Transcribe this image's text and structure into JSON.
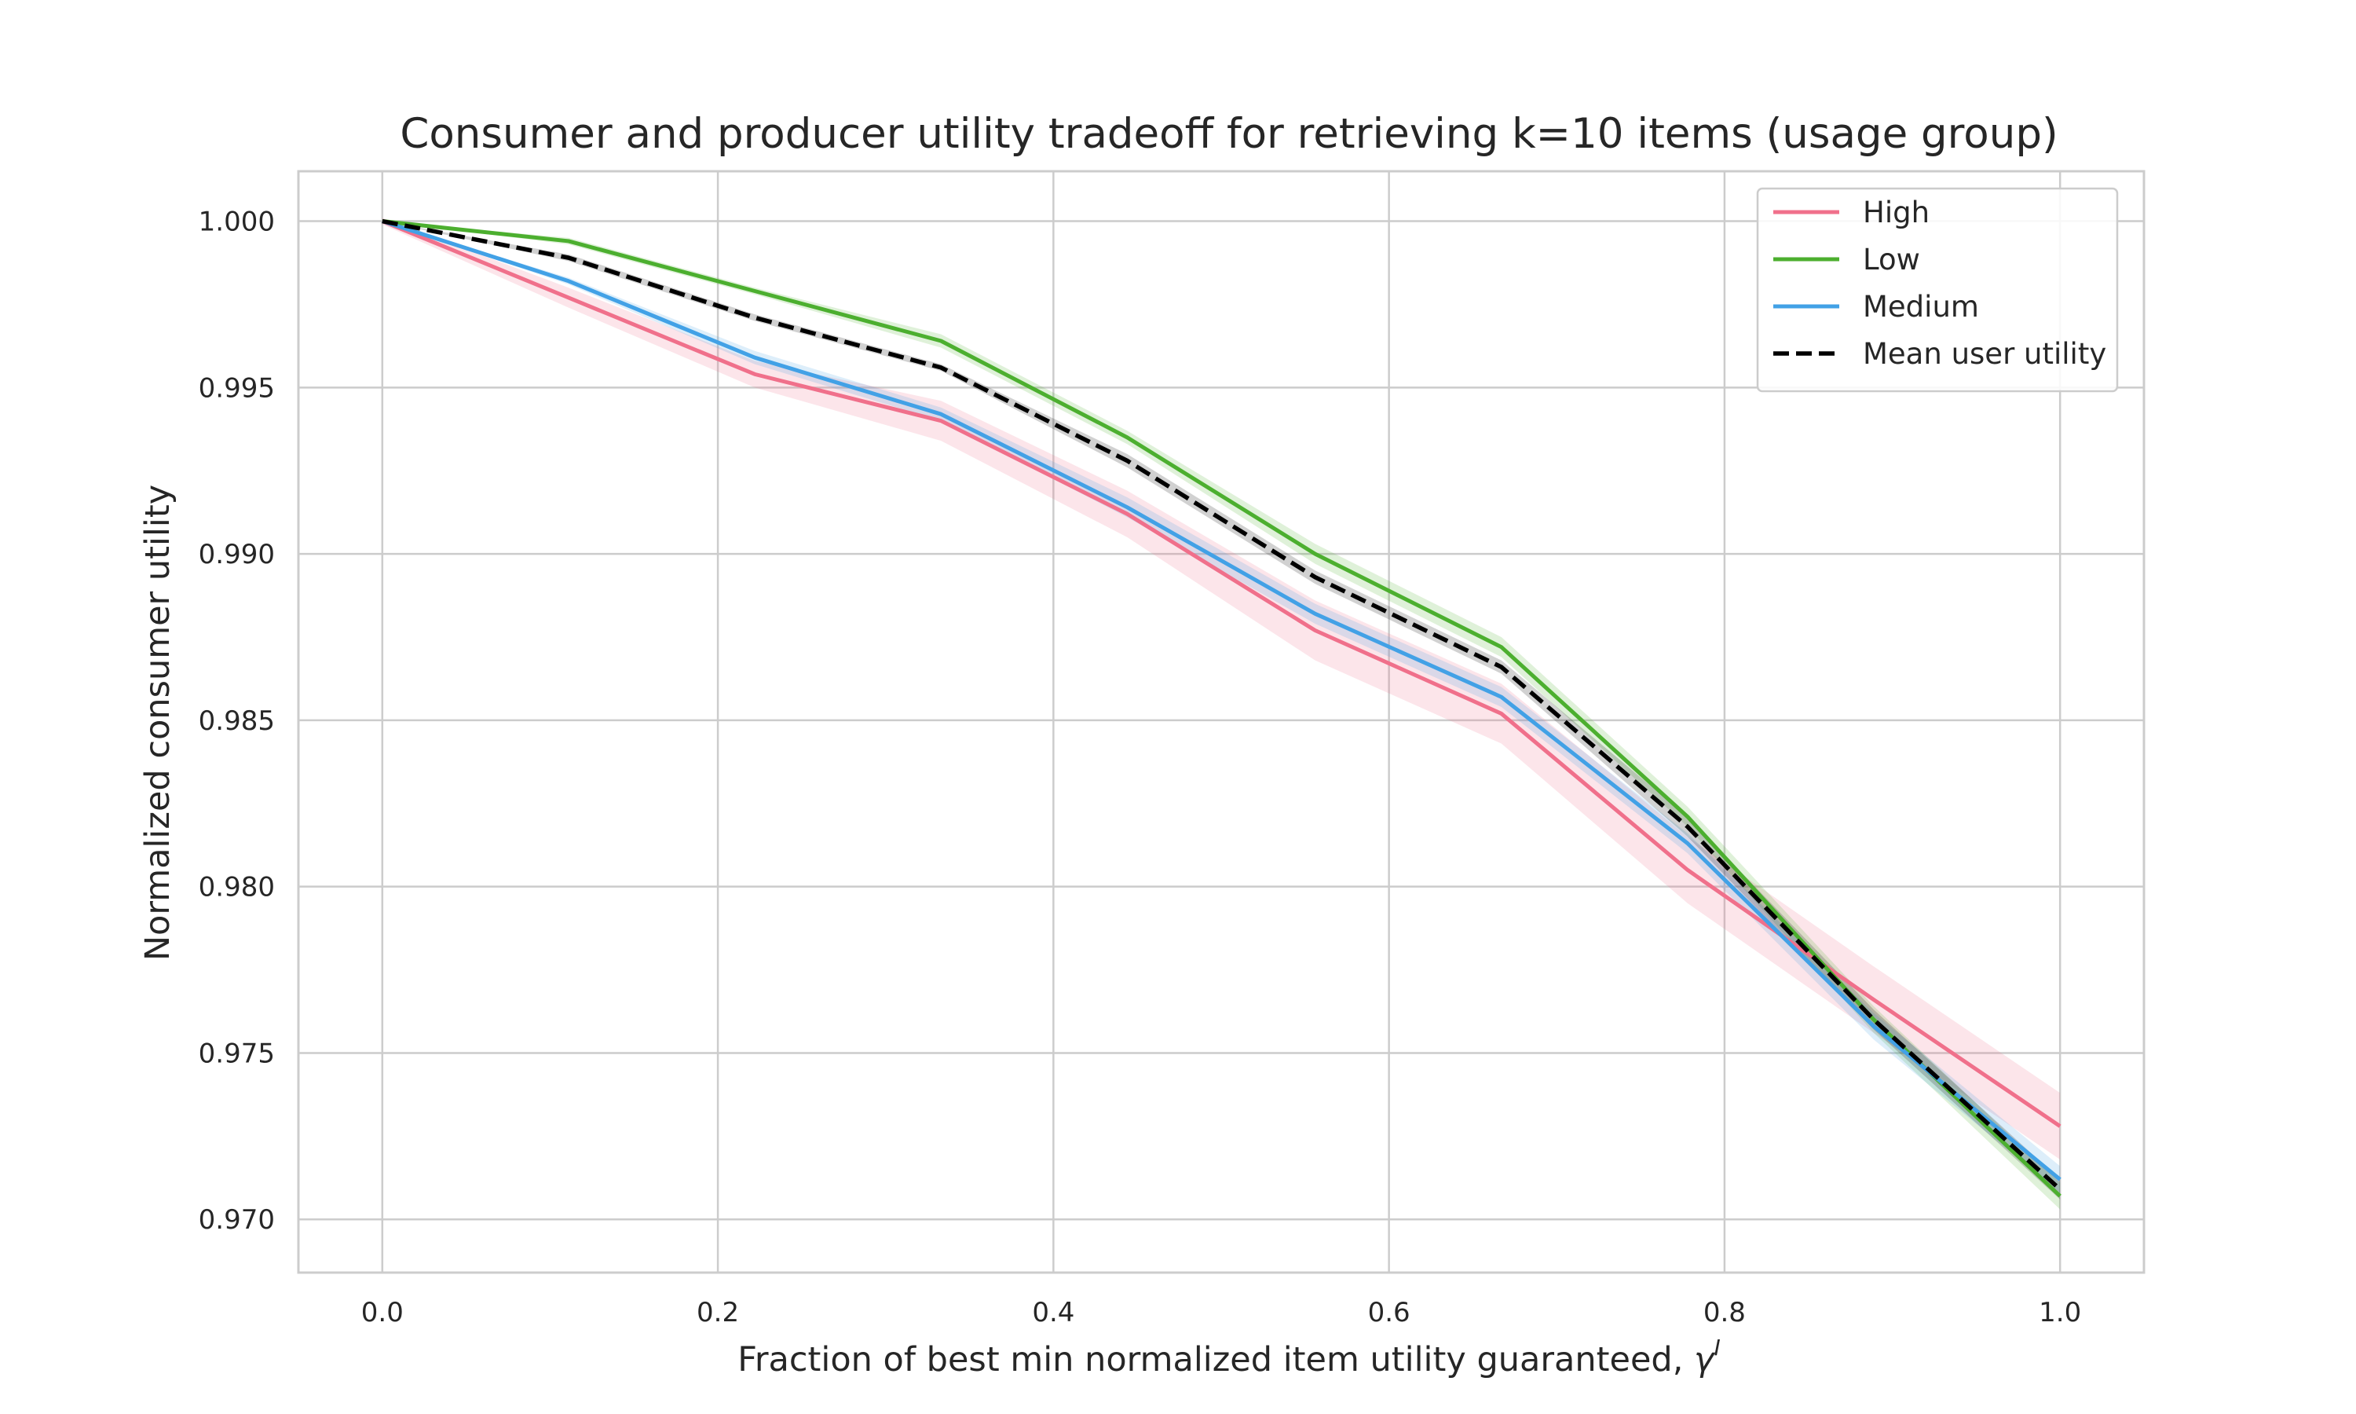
{
  "chart_data": {
    "type": "line",
    "title": "Consumer and producer utility tradeoff for retrieving k=10 items (usage  group)",
    "xlabel": "Fraction of best min normalized item utility guaranteed, ",
    "xlabel_symbol": "γ",
    "xlabel_superscript": "I",
    "ylabel": "Normalized consumer utility",
    "xlim": [
      -0.05,
      1.05
    ],
    "ylim": [
      0.9684,
      1.0015
    ],
    "x_ticks": [
      0.0,
      0.2,
      0.4,
      0.6,
      0.8,
      1.0
    ],
    "x_tick_labels": [
      "0.0",
      "0.2",
      "0.4",
      "0.6",
      "0.8",
      "1.0"
    ],
    "y_ticks": [
      0.97,
      0.975,
      0.98,
      0.985,
      0.99,
      0.995,
      1.0
    ],
    "y_tick_labels": [
      "0.970",
      "0.975",
      "0.980",
      "0.985",
      "0.990",
      "0.995",
      "1.000"
    ],
    "grid": true,
    "legend_position": "top-right",
    "x": [
      0.0,
      0.111,
      0.222,
      0.333,
      0.444,
      0.556,
      0.667,
      0.778,
      0.889,
      1.0
    ],
    "series": [
      {
        "name": "High",
        "color": "#f0708b",
        "style": "solid",
        "values": [
          1.0,
          0.9977,
          0.9954,
          0.994,
          0.9912,
          0.9877,
          0.9852,
          0.9805,
          0.9766,
          0.9728
        ],
        "band": [
          0.0001,
          0.0003,
          0.0004,
          0.0006,
          0.0007,
          0.0009,
          0.0009,
          0.001,
          0.001,
          0.001
        ]
      },
      {
        "name": "Low",
        "color": "#4caf2f",
        "style": "solid",
        "values": [
          1.0,
          0.9994,
          0.9979,
          0.9964,
          0.9935,
          0.99,
          0.9872,
          0.9821,
          0.976,
          0.9707
        ],
        "band": [
          0.0,
          0.0001,
          0.0001,
          0.0002,
          0.0002,
          0.0003,
          0.0003,
          0.0003,
          0.0004,
          0.0004
        ]
      },
      {
        "name": "Medium",
        "color": "#42a1e6",
        "style": "solid",
        "values": [
          1.0,
          0.9982,
          0.9959,
          0.9942,
          0.9914,
          0.9882,
          0.9857,
          0.9813,
          0.9758,
          0.9712
        ],
        "band": [
          0.0,
          0.0001,
          0.0002,
          0.0002,
          0.0003,
          0.0003,
          0.0003,
          0.0003,
          0.0004,
          0.0004
        ]
      },
      {
        "name": "Mean user utility",
        "color": "#000000",
        "style": "dashed",
        "values": [
          1.0,
          0.9989,
          0.9971,
          0.9956,
          0.9928,
          0.9893,
          0.9866,
          0.9818,
          0.976,
          0.9709
        ],
        "band": [
          0.0,
          0.0001,
          0.0001,
          0.0001,
          0.0002,
          0.0002,
          0.0002,
          0.0003,
          0.0003,
          0.0003
        ]
      }
    ]
  }
}
